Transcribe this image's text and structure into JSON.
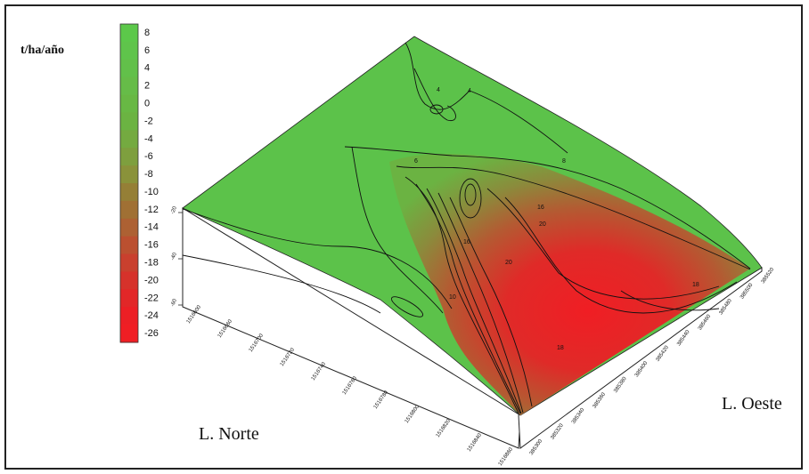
{
  "chart_data": {
    "type": "surface",
    "title": "",
    "unit_label": "t/ha/año",
    "xlabel": "L. Norte",
    "ylabel": "L. Oeste",
    "colorbar": {
      "ticks": [
        8,
        6,
        4,
        2,
        0,
        -2,
        -4,
        -6,
        -8,
        -10,
        -12,
        -14,
        -16,
        -18,
        -20,
        -22,
        -24,
        -26
      ],
      "colors": [
        "#5cc84a",
        "#5fc44b",
        "#62c04a",
        "#66bc48",
        "#68b844",
        "#6bb342",
        "#74aa40",
        "#7e9f3e",
        "#8a923a",
        "#957f36",
        "#a07034",
        "#ad6133",
        "#bb5030",
        "#c9402e",
        "#d6322b",
        "#e22728",
        "#ec1f25",
        "#f01e24"
      ]
    },
    "x_ticks": [
      "1516600",
      "1516660",
      "1516700",
      "1516720",
      "1516740",
      "1516760",
      "1516780",
      "1516800",
      "1516820",
      "1516840",
      "1516860"
    ],
    "y_ticks": [
      "385300",
      "385320",
      "385340",
      "385360",
      "385380",
      "385400",
      "385420",
      "385440",
      "385460",
      "385480",
      "385500",
      "385520"
    ],
    "z_ticks": [
      "-20",
      "-40",
      "-60"
    ],
    "contour_labels": [
      "4",
      "4",
      "6",
      "8",
      "10",
      "16",
      "16",
      "18",
      "18",
      "20",
      "20"
    ],
    "surface_extremes": {
      "max": 8,
      "min": -26
    }
  }
}
